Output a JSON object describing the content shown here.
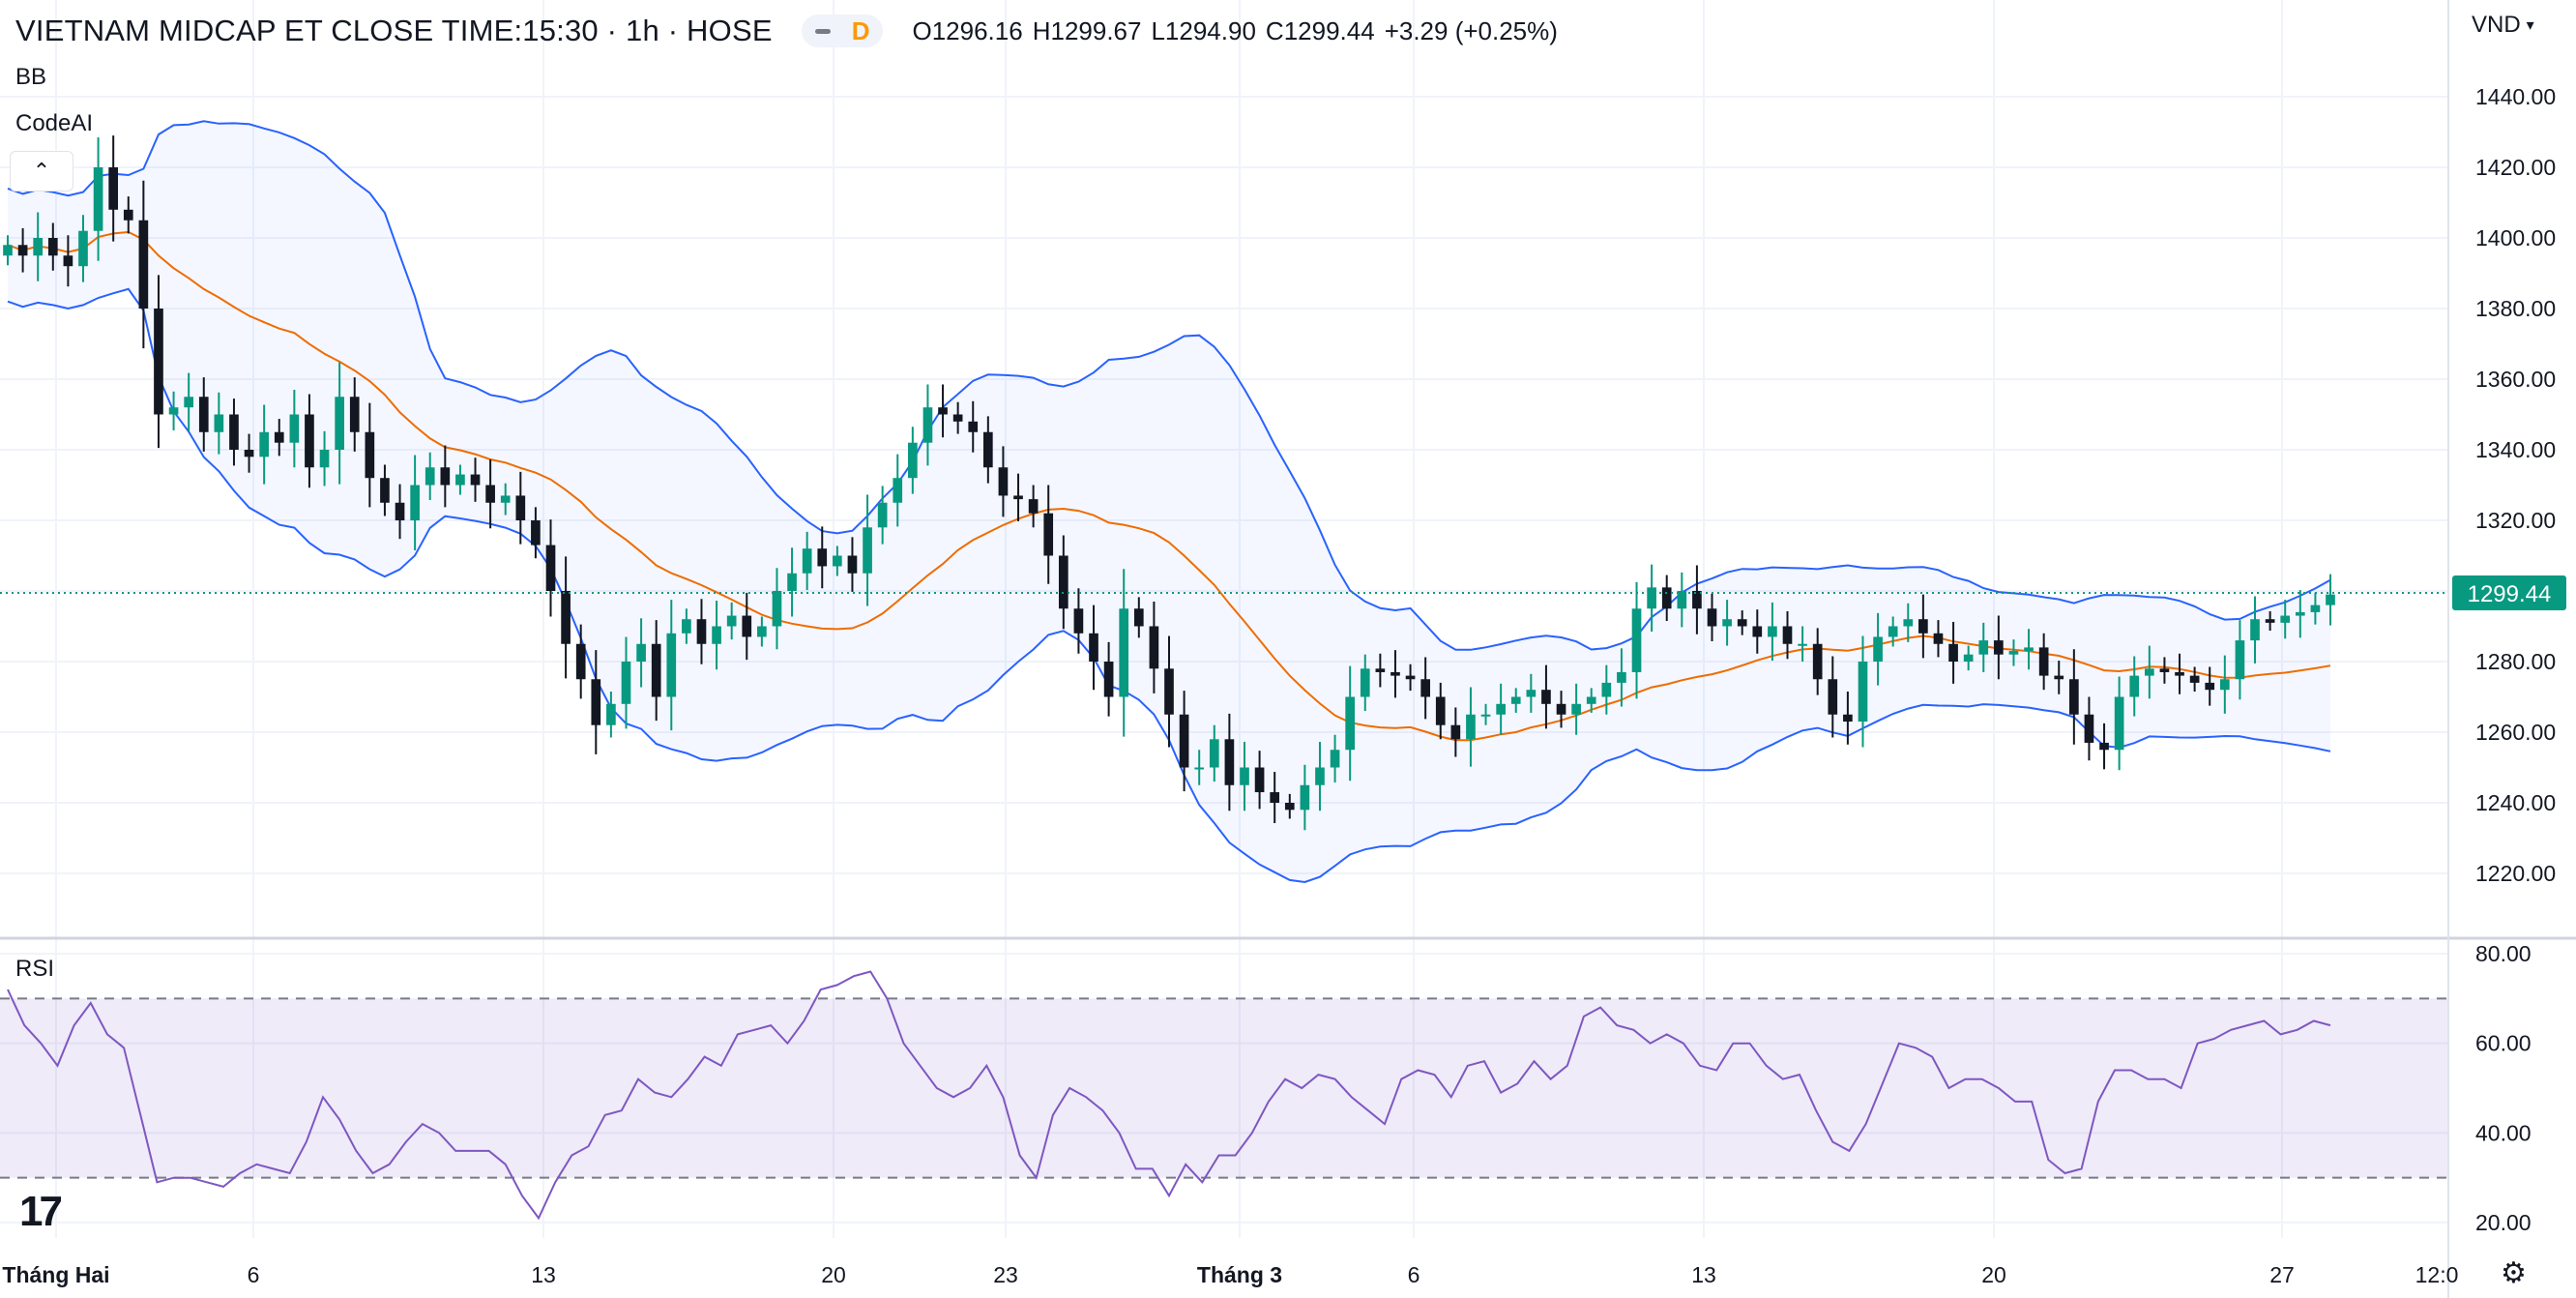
{
  "header": {
    "title": "VIETNAM MIDCAP ET CLOSE TIME:15:30 · 1h · HOSE",
    "badge": "D",
    "open": "O1296.16",
    "high": "H1299.67",
    "low": "L1294.90",
    "close": "C1299.44",
    "change": "+3.29 (+0.25%)"
  },
  "indicators": {
    "bb": "BB",
    "codeai": "CodeAI",
    "rsi": "RSI"
  },
  "currency": "VND",
  "chart_data": {
    "type": "candlestick",
    "price_ylim": [
      1215,
      1450
    ],
    "price_ticks": [
      "1440.00",
      "1420.00",
      "1400.00",
      "1380.00",
      "1360.00",
      "1340.00",
      "1320.00",
      "1300.00",
      "1280.00",
      "1260.00",
      "1240.00",
      "1220.00"
    ],
    "last_price": "1299.44",
    "rsi_ylim": [
      18,
      82
    ],
    "rsi_ticks": [
      "80.00",
      "60.00",
      "40.00",
      "20.00"
    ],
    "rsi_bands": [
      70,
      30
    ],
    "x_ticks": [
      "Tháng Hai",
      "6",
      "13",
      "20",
      "23",
      "Tháng 3",
      "6",
      "13",
      "20",
      "27",
      "12:0"
    ],
    "colors": {
      "up": "#089981",
      "down": "#131722",
      "bb": "#2962ff",
      "basis": "#ef6c00",
      "rsi": "#7e57c2",
      "last": "#089981"
    },
    "close": [
      1398,
      1395,
      1400,
      1395,
      1392,
      1402,
      1420,
      1408,
      1405,
      1380,
      1350,
      1352,
      1355,
      1345,
      1350,
      1340,
      1338,
      1345,
      1342,
      1350,
      1335,
      1340,
      1355,
      1345,
      1332,
      1325,
      1320,
      1330,
      1335,
      1330,
      1333,
      1330,
      1325,
      1327,
      1320,
      1313,
      1300,
      1285,
      1275,
      1262,
      1268,
      1280,
      1285,
      1270,
      1288,
      1292,
      1285,
      1290,
      1293,
      1287,
      1290,
      1300,
      1305,
      1312,
      1307,
      1310,
      1305,
      1318,
      1325,
      1332,
      1342,
      1352,
      1350,
      1348,
      1345,
      1335,
      1327,
      1326,
      1322,
      1310,
      1295,
      1288,
      1280,
      1270,
      1295,
      1290,
      1278,
      1265,
      1250,
      1250,
      1258,
      1245,
      1250,
      1243,
      1240,
      1238,
      1245,
      1250,
      1255,
      1270,
      1278,
      1277,
      1276,
      1275,
      1270,
      1262,
      1258,
      1265,
      1265,
      1268,
      1270,
      1272,
      1268,
      1265,
      1268,
      1270,
      1274,
      1277,
      1295,
      1301,
      1295,
      1300,
      1295,
      1290,
      1292,
      1290,
      1287,
      1290,
      1285,
      1285,
      1275,
      1265,
      1263,
      1280,
      1287,
      1290,
      1292,
      1288,
      1285,
      1280,
      1282,
      1286,
      1282,
      1283,
      1284,
      1276,
      1275,
      1265,
      1257,
      1255,
      1270,
      1276,
      1278,
      1277,
      1276,
      1274,
      1272,
      1275,
      1286,
      1292,
      1291,
      1293,
      1294,
      1296,
      1299
    ],
    "rsi": [
      72,
      64,
      60,
      55,
      64,
      69,
      62,
      59,
      44,
      29,
      30,
      30,
      29,
      28,
      31,
      33,
      32,
      31,
      38,
      48,
      43,
      36,
      31,
      33,
      38,
      42,
      40,
      36,
      36,
      36,
      33,
      26,
      21,
      29,
      35,
      37,
      44,
      45,
      52,
      49,
      48,
      52,
      57,
      55,
      62,
      63,
      64,
      60,
      65,
      72,
      73,
      75,
      76,
      70,
      60,
      55,
      50,
      48,
      50,
      55,
      48,
      35,
      30,
      44,
      50,
      48,
      45,
      40,
      32,
      32,
      26,
      33,
      29,
      35,
      35,
      40,
      47,
      52,
      50,
      53,
      52,
      48,
      45,
      42,
      52,
      54,
      53,
      48,
      55,
      56,
      49,
      51,
      56,
      52,
      55,
      66,
      68,
      64,
      63,
      60,
      62,
      60,
      55,
      54,
      60,
      60,
      55,
      52,
      53,
      45,
      38,
      36,
      42,
      51,
      60,
      59,
      57,
      50,
      52,
      52,
      50,
      47,
      47,
      34,
      31,
      32,
      47,
      54,
      54,
      52,
      52,
      50,
      60,
      61,
      63,
      64,
      65,
      62,
      63,
      65,
      64
    ]
  }
}
